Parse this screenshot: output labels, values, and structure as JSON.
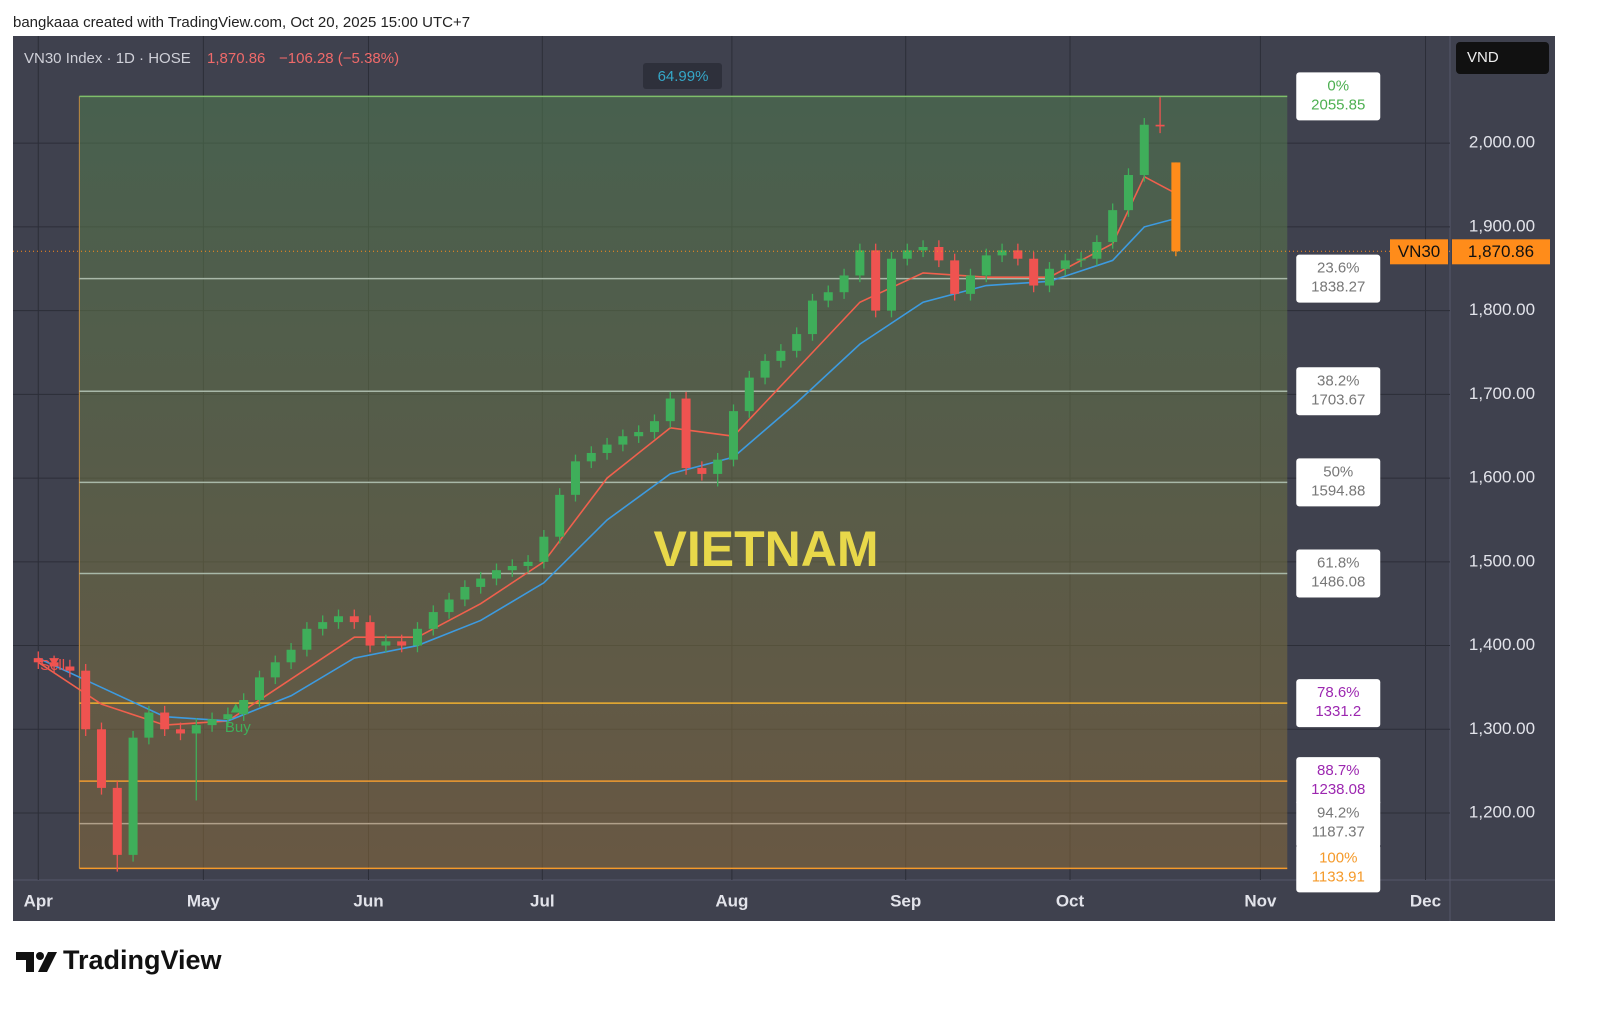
{
  "chart_data": {
    "type": "candlestick",
    "attribution": "bangkaaa created with TradingView.com, Oct 20, 2025 15:00 UTC+7",
    "symbol": "VN30 Index · 1D · HOSE",
    "last_label": "1,870.86",
    "change_label": "−106.28 (−5.38%)",
    "range_label": "64.99%",
    "currency": "VND",
    "ticker": "VN30",
    "last_price": 1870.86,
    "last_price_label": "1,870.86",
    "watermark": "VIETNAM",
    "sell_label": "Sell",
    "buy_label": "Buy",
    "brand": "TradingView",
    "up_color": "#3fae5a",
    "down_color": "#ef5350",
    "last_color": "#ff8c1a",
    "ylim": [
      1120,
      2128
    ],
    "yticks": [
      {
        "value": 1200,
        "label": "1,200.00"
      },
      {
        "value": 1300,
        "label": "1,300.00"
      },
      {
        "value": 1400,
        "label": "1,400.00"
      },
      {
        "value": 1500,
        "label": "1,500.00"
      },
      {
        "value": 1600,
        "label": "1,600.00"
      },
      {
        "value": 1700,
        "label": "1,700.00"
      },
      {
        "value": 1800,
        "label": "1,800.00"
      },
      {
        "value": 1900,
        "label": "1,900.00"
      },
      {
        "value": 2000,
        "label": "2,000.00"
      }
    ],
    "xlim": [
      -3.2,
      178.7
    ],
    "xticks": [
      {
        "value": 0,
        "label": "Apr"
      },
      {
        "value": 20.9,
        "label": "May"
      },
      {
        "value": 41.8,
        "label": "Jun"
      },
      {
        "value": 63.8,
        "label": "Jul"
      },
      {
        "value": 87.8,
        "label": "Aug"
      },
      {
        "value": 109.8,
        "label": "Sep"
      },
      {
        "value": 130.6,
        "label": "Oct"
      },
      {
        "value": 154.7,
        "label": "Nov"
      },
      {
        "value": 175.6,
        "label": "Dec"
      }
    ],
    "grid": true,
    "x": [
      0,
      2,
      4,
      6,
      8,
      10,
      12,
      14,
      16,
      18,
      20,
      22,
      24,
      26,
      28,
      30,
      32,
      34,
      36,
      38,
      40,
      42,
      44,
      46,
      48,
      50,
      52,
      54,
      56,
      58,
      60,
      62,
      64,
      66,
      68,
      70,
      72,
      74,
      76,
      78,
      80,
      82,
      84,
      86,
      88,
      90,
      92,
      94,
      96,
      98,
      100,
      102,
      104,
      106,
      108,
      110,
      112,
      114,
      116,
      118,
      120,
      122,
      124,
      126,
      128,
      130,
      132,
      134,
      136,
      138,
      140,
      142,
      144
    ],
    "open": [
      1385,
      1380,
      1375,
      1370,
      1300,
      1230,
      1150,
      1290,
      1320,
      1300,
      1295,
      1305,
      1312,
      1318,
      1335,
      1362,
      1380,
      1395,
      1420,
      1428,
      1435,
      1428,
      1400,
      1405,
      1400,
      1420,
      1440,
      1455,
      1470,
      1480,
      1490,
      1495,
      1500,
      1530,
      1580,
      1620,
      1630,
      1640,
      1650,
      1655,
      1668,
      1695,
      1612,
      1605,
      1622,
      1680,
      1720,
      1740,
      1752,
      1772,
      1812,
      1822,
      1842,
      1872,
      1800,
      1862,
      1872,
      1876,
      1860,
      1820,
      1842,
      1866,
      1872,
      1862,
      1830,
      1850,
      1860,
      1862,
      1882,
      1920,
      1962,
      2022,
      1977
    ],
    "high": [
      1393,
      1388,
      1383,
      1378,
      1308,
      1238,
      1298,
      1328,
      1328,
      1308,
      1313,
      1320,
      1326,
      1343,
      1370,
      1388,
      1403,
      1428,
      1436,
      1443,
      1443,
      1436,
      1413,
      1413,
      1428,
      1448,
      1463,
      1478,
      1488,
      1498,
      1503,
      1508,
      1538,
      1588,
      1628,
      1638,
      1648,
      1658,
      1663,
      1676,
      1703,
      1703,
      1620,
      1630,
      1688,
      1728,
      1748,
      1760,
      1780,
      1820,
      1830,
      1850,
      1880,
      1880,
      1870,
      1880,
      1884,
      1884,
      1868,
      1850,
      1874,
      1880,
      1880,
      1870,
      1858,
      1868,
      1870,
      1890,
      1928,
      1970,
      2030,
      2055,
      1977
    ],
    "low": [
      1372,
      1367,
      1362,
      1292,
      1222,
      1130,
      1142,
      1282,
      1292,
      1287,
      1215,
      1297,
      1304,
      1310,
      1327,
      1354,
      1372,
      1387,
      1412,
      1420,
      1420,
      1392,
      1392,
      1392,
      1392,
      1412,
      1432,
      1447,
      1462,
      1472,
      1482,
      1487,
      1492,
      1522,
      1572,
      1612,
      1622,
      1632,
      1642,
      1647,
      1660,
      1604,
      1597,
      1590,
      1614,
      1672,
      1712,
      1732,
      1744,
      1764,
      1804,
      1814,
      1834,
      1792,
      1792,
      1854,
      1864,
      1852,
      1812,
      1812,
      1834,
      1858,
      1854,
      1822,
      1822,
      1842,
      1852,
      1854,
      1874,
      1912,
      1954,
      2012,
      1865
    ],
    "close": [
      1380,
      1375,
      1370,
      1300,
      1230,
      1150,
      1290,
      1320,
      1300,
      1295,
      1305,
      1312,
      1318,
      1335,
      1362,
      1380,
      1395,
      1420,
      1428,
      1435,
      1428,
      1400,
      1405,
      1400,
      1420,
      1440,
      1455,
      1470,
      1480,
      1490,
      1495,
      1500,
      1530,
      1580,
      1620,
      1630,
      1640,
      1650,
      1655,
      1668,
      1695,
      1612,
      1605,
      1622,
      1680,
      1720,
      1740,
      1752,
      1772,
      1812,
      1822,
      1842,
      1872,
      1800,
      1862,
      1872,
      1876,
      1860,
      1820,
      1842,
      1866,
      1872,
      1862,
      1830,
      1850,
      1860,
      1862,
      1882,
      1920,
      1962,
      2022,
      2020,
      1870.86
    ],
    "averages": [
      {
        "color": "#f0604d",
        "x": [
          0,
          8,
          16,
          24,
          32,
          40,
          48,
          56,
          64,
          72,
          80,
          88,
          96,
          104,
          112,
          120,
          128,
          136,
          140,
          144
        ],
        "values": [
          1380,
          1330,
          1305,
          1310,
          1360,
          1410,
          1410,
          1450,
          1500,
          1600,
          1660,
          1650,
          1730,
          1810,
          1845,
          1840,
          1840,
          1880,
          1960,
          1940
        ]
      },
      {
        "color": "#3d9be0",
        "x": [
          0,
          8,
          16,
          24,
          32,
          40,
          48,
          56,
          64,
          72,
          80,
          88,
          96,
          104,
          112,
          120,
          128,
          136,
          140,
          144
        ],
        "values": [
          1385,
          1350,
          1315,
          1310,
          1340,
          1385,
          1400,
          1430,
          1475,
          1550,
          1605,
          1625,
          1690,
          1760,
          1810,
          1830,
          1835,
          1860,
          1900,
          1910
        ]
      }
    ],
    "sell_x": 2,
    "buy_x": 25,
    "fib_x": [
      5.2,
      158.1
    ],
    "fib_levels": [
      {
        "percent": "0%",
        "price": 2055.85,
        "color": "#7fbf6a",
        "text_color": "#4caf50"
      },
      {
        "percent": "23.6%",
        "price": 1838.27,
        "color": "#a8b8a8",
        "text_color": "#777"
      },
      {
        "percent": "38.2%",
        "price": 1703.67,
        "color": "#a8b8a8",
        "text_color": "#777"
      },
      {
        "percent": "50%",
        "price": 1594.88,
        "color": "#a8b8a8",
        "text_color": "#777"
      },
      {
        "percent": "61.8%",
        "price": 1486.08,
        "color": "#a8b8a8",
        "text_color": "#777"
      },
      {
        "percent": "78.6%",
        "price": 1331.2,
        "color": "#f0b030",
        "text_color": "#9c27b0"
      },
      {
        "percent": "88.7%",
        "price": 1238.08,
        "color": "#f09a30",
        "text_color": "#9c27b0"
      },
      {
        "percent": "94.2%",
        "price": 1187.37,
        "color": "#b0a08a",
        "text_color": "#777"
      },
      {
        "percent": "100%",
        "price": 1133.91,
        "color": "#f59a2a",
        "text_color": "#f59a2a"
      }
    ]
  }
}
